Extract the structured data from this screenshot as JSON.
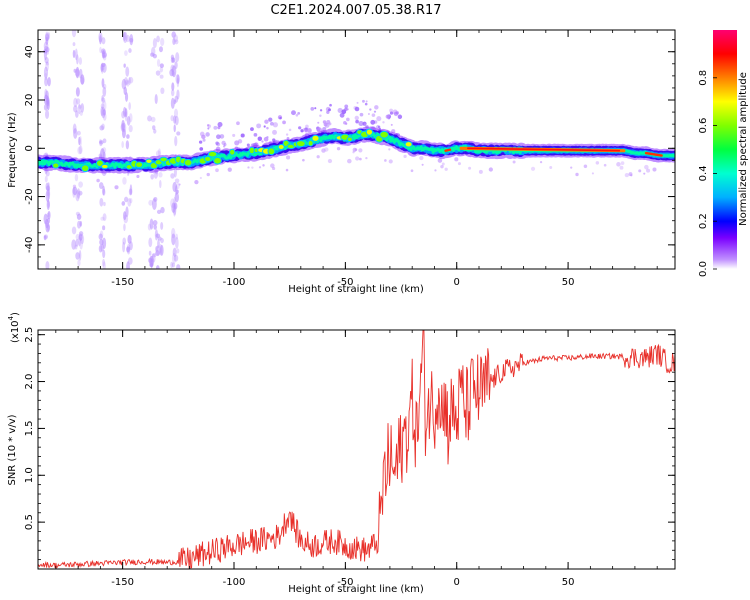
{
  "title": "C2E1.2024.007.05.38.R17",
  "chart_data": [
    {
      "type": "heatmap",
      "title": "C2E1.2024.007.05.38.R17",
      "xlabel": "Height of straight line (km)",
      "ylabel": "Frequency (Hz)",
      "xlim": [
        -188,
        98
      ],
      "ylim": [
        -50,
        49
      ],
      "x_ticks": [
        -150,
        -100,
        -50,
        0,
        50
      ],
      "y_ticks": [
        -40,
        -20,
        0,
        20,
        40
      ],
      "x_tick_labels": [
        "-150",
        "-100",
        "-50",
        "0",
        "50"
      ],
      "y_tick_labels": [
        "-40",
        "-20",
        "0",
        "20",
        "40"
      ],
      "ridge_frequency": {
        "x": [
          -188,
          -180,
          -170,
          -160,
          -150,
          -140,
          -130,
          -120,
          -110,
          -100,
          -90,
          -80,
          -75,
          -70,
          -60,
          -55,
          -50,
          -45,
          -40,
          -35,
          -30,
          -25,
          -20,
          -15,
          -10,
          -5,
          0,
          5,
          10,
          20,
          30,
          40,
          50,
          60,
          70,
          75,
          80,
          85,
          90,
          95,
          98
        ],
        "y": [
          -6,
          -6,
          -7,
          -7,
          -7,
          -7,
          -6,
          -6,
          -4,
          -3,
          -2,
          0,
          1,
          2,
          4,
          5,
          4,
          5,
          6,
          5,
          4,
          2,
          0,
          0,
          -1,
          -1,
          0,
          0,
          -1,
          -1,
          -1,
          -1,
          -1,
          -1,
          -1,
          -1,
          -2,
          -2,
          -3,
          -3,
          -3
        ]
      },
      "colorbar": {
        "label": "Normalized spectral amplitude",
        "range": [
          0.0,
          1.0
        ],
        "ticks": [
          0.0,
          0.2,
          0.4,
          0.6,
          0.8
        ],
        "tick_labels": [
          "0.0",
          "0.2",
          "0.4",
          "0.6",
          "0.8"
        ],
        "colors": [
          "#ffffff",
          "#c090ff",
          "#7a00ff",
          "#0000ff",
          "#00b0ff",
          "#00ffd0",
          "#00ff40",
          "#80ff00",
          "#ffff00",
          "#ff8000",
          "#ff0000",
          "#ff0070"
        ]
      }
    },
    {
      "type": "line",
      "xlabel": "Height of straight line (km)",
      "ylabel": "SNR (10 * v/v)",
      "y_multiplier": "(x10",
      "y_multiplier_exp": "4",
      "y_multiplier_close": ")",
      "xlim": [
        -188,
        98
      ],
      "ylim": [
        0,
        2.55
      ],
      "x_ticks": [
        -150,
        -100,
        -50,
        0,
        50
      ],
      "y_ticks": [
        0.5,
        1.0,
        1.5,
        2.0,
        2.5
      ],
      "x_tick_labels": [
        "-150",
        "-100",
        "-50",
        "0",
        "50"
      ],
      "y_tick_labels": [
        "0.5",
        "1.0",
        "1.5",
        "2.0",
        "2.5"
      ],
      "color": "#e8302a",
      "series": [
        {
          "x": [
            -188,
            -180,
            -170,
            -160,
            -150,
            -140,
            -130,
            -125,
            -120,
            -115,
            -110,
            -105,
            -100,
            -95,
            -90,
            -85,
            -80,
            -75,
            -73,
            -70,
            -65,
            -60,
            -55,
            -50,
            -45,
            -40,
            -35,
            -33,
            -30,
            -28,
            -25,
            -22,
            -20,
            -18,
            -16,
            -15,
            -14,
            -12,
            -10,
            -8,
            -6,
            -5,
            -4,
            -2,
            0,
            2,
            4,
            6,
            8,
            10,
            12,
            15,
            18,
            20,
            25,
            30,
            35,
            40,
            45,
            50,
            60,
            70,
            80,
            85,
            90,
            95,
            98
          ],
          "y": [
            0.05,
            0.04,
            0.05,
            0.06,
            0.07,
            0.08,
            0.07,
            0.08,
            0.1,
            0.15,
            0.18,
            0.22,
            0.25,
            0.28,
            0.3,
            0.32,
            0.35,
            0.6,
            0.45,
            0.3,
            0.25,
            0.28,
            0.3,
            0.25,
            0.22,
            0.2,
            0.3,
            0.9,
            1.2,
            1.0,
            1.3,
            1.5,
            1.8,
            1.4,
            2.0,
            2.55,
            1.6,
            1.8,
            1.7,
            2.0,
            1.6,
            1.9,
            1.5,
            1.7,
            1.6,
            1.9,
            1.7,
            1.8,
            1.95,
            1.85,
            1.9,
            2.0,
            2.05,
            2.1,
            2.15,
            2.2,
            2.22,
            2.25,
            2.25,
            2.25,
            2.27,
            2.27,
            2.26,
            2.25,
            2.3,
            2.2,
            2.2
          ]
        }
      ]
    }
  ]
}
